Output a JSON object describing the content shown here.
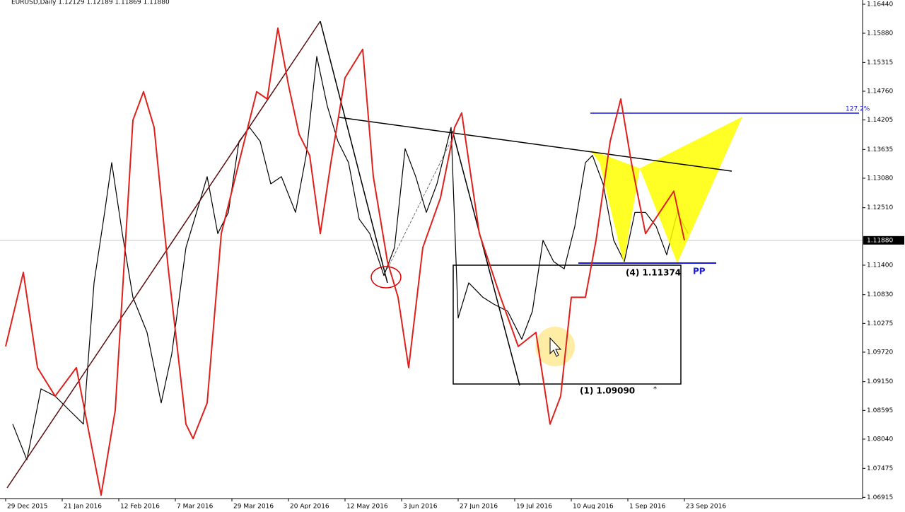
{
  "chart_data": {
    "type": "line",
    "title": "EURUSD,Daily  1.12129 1.12189 1.11869 1.11880",
    "x": [
      2,
      6,
      10,
      14,
      18,
      22,
      25,
      28,
      30,
      33,
      36,
      40,
      44,
      47,
      51,
      54,
      57,
      60,
      63,
      66,
      69,
      72,
      75,
      78,
      82,
      85,
      88,
      91,
      94,
      97,
      100,
      103,
      107,
      110,
      113,
      116,
      119,
      122,
      126,
      128,
      131,
      135,
      138,
      142,
      146,
      149,
      152,
      155,
      158,
      161,
      164,
      166,
      169,
      172,
      175,
      178,
      181,
      184,
      187,
      190,
      193
    ],
    "values": [
      1.0833,
      1.0764,
      1.0901,
      1.0887,
      1.086,
      1.0833,
      1.1106,
      1.1242,
      1.1338,
      1.1201,
      1.1078,
      1.101,
      1.0874,
      1.0969,
      1.1174,
      1.1242,
      1.1311,
      1.1201,
      1.1242,
      1.1379,
      1.1406,
      1.1379,
      1.1297,
      1.1311,
      1.1242,
      1.1352,
      1.1543,
      1.1447,
      1.1379,
      1.1338,
      1.1229,
      1.1201,
      1.112,
      1.1174,
      1.1365,
      1.1311,
      1.1242,
      1.1297,
      1.1406,
      1.1038,
      1.1106,
      1.1078,
      1.1065,
      1.1051,
      1.0997,
      1.1051,
      1.1188,
      1.1147,
      1.1133,
      1.1215,
      1.1338,
      1.1352,
      1.1297,
      1.1188,
      1.1147,
      1.1242,
      1.1242,
      1.1215,
      1.116,
      1.1242,
      1.1201
    ],
    "color": "#000000",
    "indicator": {
      "color": "#e0201c",
      "x": [
        0,
        5,
        9,
        14,
        20,
        27,
        31,
        36,
        39,
        42,
        46,
        51,
        53,
        57,
        61,
        66,
        71,
        74,
        77,
        80,
        83,
        86,
        89,
        92,
        96,
        101,
        104,
        108,
        111,
        114,
        118,
        123,
        127,
        129,
        134,
        140,
        145,
        150,
        154,
        157,
        160,
        164,
        167,
        171,
        174,
        177,
        181,
        185,
        189,
        192
      ],
      "values": [
        1.0983,
        1.1126,
        1.0942,
        1.0887,
        1.0942,
        1.0696,
        1.086,
        1.142,
        1.1475,
        1.1406,
        1.1133,
        1.0833,
        1.0805,
        1.0874,
        1.1201,
        1.1338,
        1.1475,
        1.1461,
        1.1598,
        1.1488,
        1.1393,
        1.1352,
        1.1201,
        1.1338,
        1.1502,
        1.1557,
        1.1311,
        1.1147,
        1.1078,
        1.0942,
        1.1174,
        1.127,
        1.1406,
        1.1434,
        1.1201,
        1.1078,
        1.0983,
        1.101,
        1.0833,
        1.0887,
        1.1078,
        1.1078,
        1.1188,
        1.1379,
        1.1461,
        1.1338,
        1.1201,
        1.1242,
        1.1283,
        1.1188
      ]
    },
    "xlim": [
      -1.6,
      242.4
    ],
    "ylim": [
      1.06892,
      1.16522
    ],
    "yticks": [
      {
        "value": 1.1644,
        "label": "1.16440"
      },
      {
        "value": 1.1588,
        "label": "1.15880"
      },
      1.15315,
      {
        "value": 1.1476,
        "label": "1.14760"
      },
      1.14205,
      1.13635,
      {
        "value": 1.1308,
        "label": "1.13080"
      },
      {
        "value": 1.1251,
        "label": "1.12510"
      },
      {
        "value": 1.114,
        "label": "1.11400"
      },
      {
        "value": 1.1083,
        "label": "1.10830"
      },
      1.10275,
      {
        "value": 1.0972,
        "label": "1.09720"
      },
      {
        "value": 1.0915,
        "label": "1.09150"
      },
      1.08595,
      {
        "value": 1.0804,
        "label": "1.08040"
      },
      1.07475,
      1.06915
    ],
    "xticks": [
      {
        "value": 0,
        "label": "29 Dec 2015"
      },
      {
        "value": 16,
        "label": "21 Jan 2016"
      },
      {
        "value": 32,
        "label": "12 Feb 2016"
      },
      {
        "value": 48,
        "label": "7 Mar 2016"
      },
      {
        "value": 64,
        "label": "29 Mar 2016"
      },
      {
        "value": 80,
        "label": "20 Apr 2016"
      },
      {
        "value": 96,
        "label": "12 May 2016"
      },
      {
        "value": 112,
        "label": "3 Jun 2016"
      },
      {
        "value": 128,
        "label": "27 Jun 2016"
      },
      {
        "value": 144,
        "label": "19 Jul 2016"
      },
      {
        "value": 160,
        "label": "10 Aug 2016"
      },
      {
        "value": 176,
        "label": "1 Sep 2016"
      },
      {
        "value": 192,
        "label": "23 Sep 2016"
      }
    ],
    "price_label": {
      "value": 1.1188,
      "label": "1.11880"
    },
    "annotations": {
      "fib": "127.2%",
      "point4": "(4) 1.11374",
      "pp": "PP",
      "point1": "(1) 1.09090",
      "star": "*"
    }
  }
}
